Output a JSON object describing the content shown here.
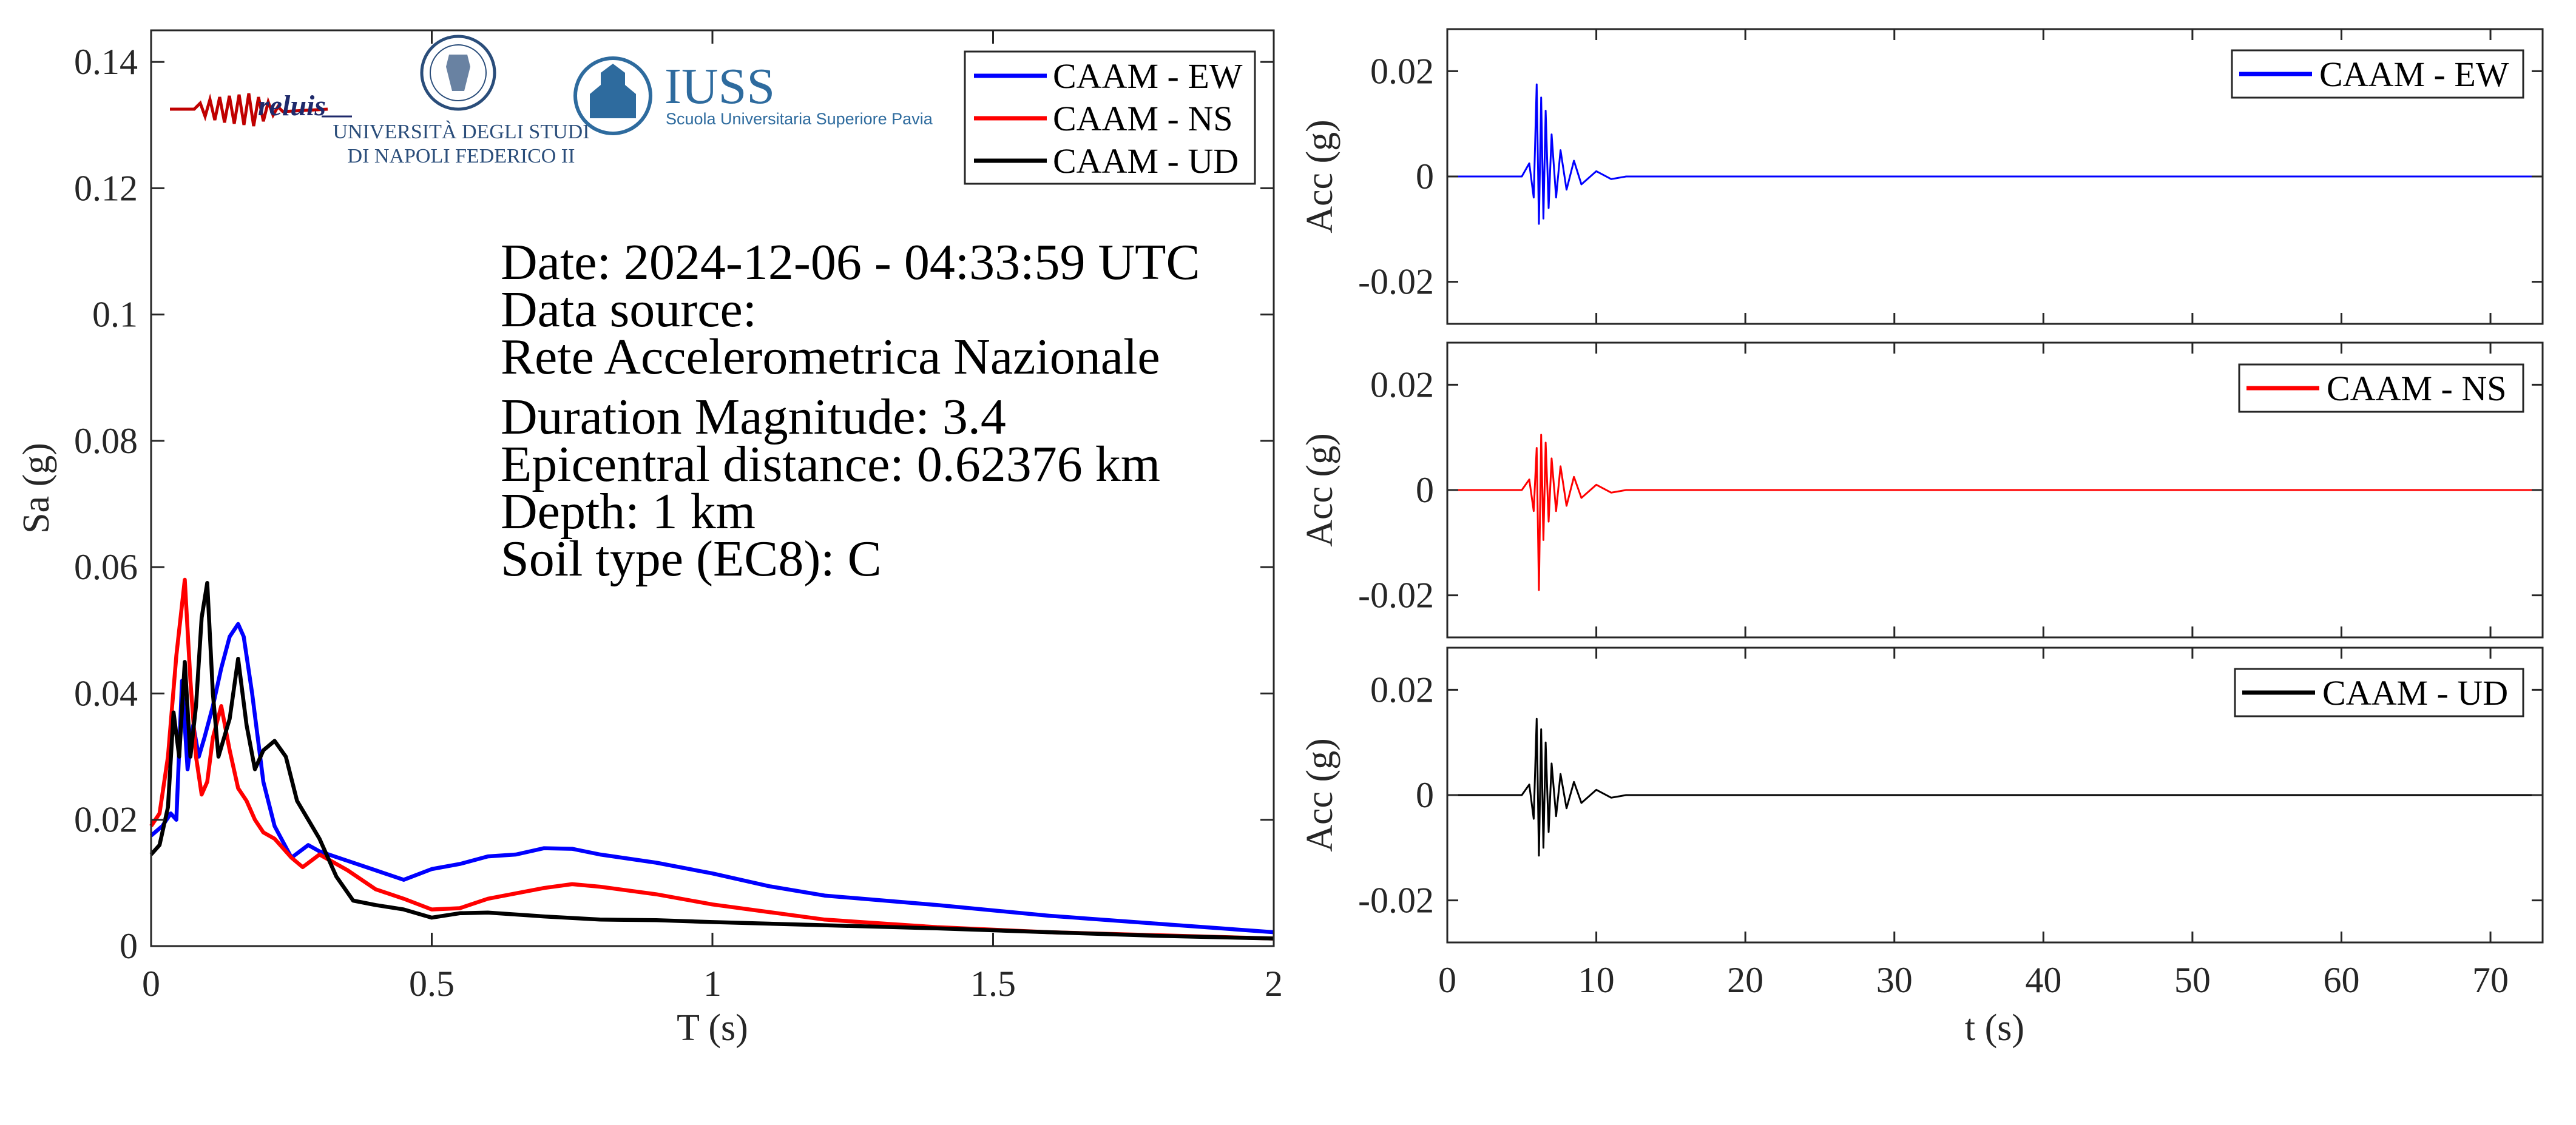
{
  "chart_data": [
    {
      "type": "line",
      "id": "response-spectrum",
      "xlabel": "T (s)",
      "ylabel": "Sa (g)",
      "xlim": [
        0,
        2
      ],
      "ylim": [
        0,
        0.145
      ],
      "xticks": [
        0,
        0.5,
        1,
        1.5,
        2
      ],
      "xtick_labels": [
        "0",
        "0.5",
        "1",
        "1.5",
        "2"
      ],
      "yticks": [
        0,
        0.02,
        0.04,
        0.06,
        0.08,
        0.1,
        0.12,
        0.14
      ],
      "ytick_labels": [
        "0",
        "0.02",
        "0.04",
        "0.06",
        "0.08",
        "0.1",
        "0.12",
        "0.14"
      ],
      "grid": false,
      "legend_position": "top-right",
      "series": [
        {
          "name": "CAAM - EW",
          "color": "#0000ff",
          "x": [
            0,
            0.02,
            0.035,
            0.045,
            0.055,
            0.065,
            0.075,
            0.085,
            0.095,
            0.11,
            0.125,
            0.14,
            0.155,
            0.165,
            0.18,
            0.2,
            0.22,
            0.25,
            0.28,
            0.3,
            0.35,
            0.4,
            0.45,
            0.5,
            0.55,
            0.6,
            0.65,
            0.7,
            0.75,
            0.8,
            0.9,
            1.0,
            1.1,
            1.2,
            1.4,
            1.6,
            1.8,
            2.0
          ],
          "y": [
            0.0175,
            0.019,
            0.021,
            0.02,
            0.042,
            0.028,
            0.035,
            0.03,
            0.033,
            0.038,
            0.044,
            0.049,
            0.051,
            0.049,
            0.04,
            0.026,
            0.019,
            0.014,
            0.016,
            0.015,
            0.0135,
            0.012,
            0.0105,
            0.0122,
            0.013,
            0.0142,
            0.0145,
            0.0155,
            0.0154,
            0.0145,
            0.0132,
            0.0115,
            0.0095,
            0.008,
            0.0065,
            0.0048,
            0.0035,
            0.0022
          ]
        },
        {
          "name": "CAAM - NS",
          "color": "#ff0000",
          "x": [
            0,
            0.015,
            0.03,
            0.045,
            0.06,
            0.07,
            0.08,
            0.09,
            0.1,
            0.11,
            0.125,
            0.14,
            0.155,
            0.17,
            0.185,
            0.2,
            0.22,
            0.25,
            0.27,
            0.3,
            0.35,
            0.4,
            0.45,
            0.5,
            0.55,
            0.6,
            0.7,
            0.75,
            0.8,
            0.9,
            1.0,
            1.2,
            1.4,
            1.6,
            2.0
          ],
          "y": [
            0.019,
            0.021,
            0.03,
            0.046,
            0.058,
            0.042,
            0.03,
            0.024,
            0.026,
            0.033,
            0.038,
            0.031,
            0.025,
            0.023,
            0.02,
            0.018,
            0.017,
            0.014,
            0.0125,
            0.0145,
            0.012,
            0.009,
            0.0075,
            0.0058,
            0.006,
            0.0075,
            0.0092,
            0.0098,
            0.0094,
            0.0082,
            0.0066,
            0.0042,
            0.003,
            0.0022,
            0.0012
          ]
        },
        {
          "name": "CAAM - UD",
          "color": "#000000",
          "x": [
            0,
            0.015,
            0.03,
            0.04,
            0.05,
            0.06,
            0.07,
            0.08,
            0.09,
            0.1,
            0.11,
            0.12,
            0.14,
            0.155,
            0.17,
            0.185,
            0.2,
            0.22,
            0.24,
            0.26,
            0.28,
            0.3,
            0.33,
            0.36,
            0.4,
            0.45,
            0.5,
            0.55,
            0.6,
            0.7,
            0.8,
            0.9,
            1.0,
            1.2,
            1.4,
            1.6,
            1.8,
            2.0
          ],
          "y": [
            0.0145,
            0.016,
            0.022,
            0.037,
            0.03,
            0.045,
            0.03,
            0.038,
            0.052,
            0.0575,
            0.04,
            0.03,
            0.036,
            0.0455,
            0.035,
            0.028,
            0.031,
            0.0325,
            0.03,
            0.023,
            0.02,
            0.017,
            0.011,
            0.0072,
            0.0065,
            0.0058,
            0.0045,
            0.0052,
            0.0053,
            0.0047,
            0.0042,
            0.0041,
            0.0038,
            0.0033,
            0.0028,
            0.0022,
            0.0016,
            0.0012
          ]
        }
      ]
    },
    {
      "type": "line",
      "id": "accelerogram-ew",
      "xlabel": "",
      "ylabel": "Acc (g)",
      "xlim": [
        0,
        73.5
      ],
      "ylim": [
        -0.028,
        0.028
      ],
      "yticks": [
        -0.02,
        0,
        0.02
      ],
      "ytick_labels": [
        "-0.02",
        "0",
        "0.02"
      ],
      "grid": false,
      "legend_position": "top-right",
      "series": [
        {
          "name": "CAAM - EW",
          "color": "#0000ff",
          "x": [
            0,
            5.0,
            5.5,
            5.8,
            6.0,
            6.15,
            6.3,
            6.45,
            6.6,
            6.8,
            7.0,
            7.3,
            7.6,
            8.0,
            8.5,
            9.0,
            10.0,
            11.0,
            12.0,
            73.5
          ],
          "y": [
            0,
            0,
            0.0025,
            -0.004,
            0.0175,
            -0.009,
            0.015,
            -0.008,
            0.0125,
            -0.006,
            0.008,
            -0.004,
            0.005,
            -0.0025,
            0.003,
            -0.0015,
            0.001,
            -0.0005,
            0,
            0
          ]
        }
      ]
    },
    {
      "type": "line",
      "id": "accelerogram-ns",
      "xlabel": "",
      "ylabel": "Acc (g)",
      "xlim": [
        0,
        73.5
      ],
      "ylim": [
        -0.028,
        0.028
      ],
      "yticks": [
        -0.02,
        0,
        0.02
      ],
      "ytick_labels": [
        "-0.02",
        "0",
        "0.02"
      ],
      "grid": false,
      "legend_position": "top-right",
      "series": [
        {
          "name": "CAAM - NS",
          "color": "#ff0000",
          "x": [
            0,
            5.0,
            5.5,
            5.8,
            6.0,
            6.15,
            6.3,
            6.45,
            6.6,
            6.8,
            7.0,
            7.3,
            7.6,
            8.0,
            8.5,
            9.0,
            10.0,
            11.0,
            12.0,
            73.5
          ],
          "y": [
            0,
            0,
            0.002,
            -0.004,
            0.008,
            -0.019,
            0.0105,
            -0.0095,
            0.009,
            -0.006,
            0.006,
            -0.004,
            0.0045,
            -0.003,
            0.0025,
            -0.0015,
            0.001,
            -0.0005,
            0,
            0
          ]
        }
      ]
    },
    {
      "type": "line",
      "id": "accelerogram-ud",
      "xlabel": "t (s)",
      "ylabel": "Acc (g)",
      "xlim": [
        0,
        73.5
      ],
      "ylim": [
        -0.028,
        0.028
      ],
      "xticks": [
        0,
        10,
        20,
        30,
        40,
        50,
        60,
        70
      ],
      "xtick_labels": [
        "0",
        "10",
        "20",
        "30",
        "40",
        "50",
        "60",
        "70"
      ],
      "yticks": [
        -0.02,
        0,
        0.02
      ],
      "ytick_labels": [
        "-0.02",
        "0",
        "0.02"
      ],
      "grid": false,
      "legend_position": "top-right",
      "series": [
        {
          "name": "CAAM - UD",
          "color": "#000000",
          "x": [
            0,
            5.0,
            5.5,
            5.8,
            6.0,
            6.15,
            6.3,
            6.45,
            6.6,
            6.8,
            7.0,
            7.3,
            7.6,
            8.0,
            8.5,
            9.0,
            10.0,
            11.0,
            12.0,
            73.5
          ],
          "y": [
            0,
            0,
            0.002,
            -0.0045,
            0.0145,
            -0.0115,
            0.0125,
            -0.01,
            0.01,
            -0.007,
            0.006,
            -0.004,
            0.004,
            -0.0025,
            0.0025,
            -0.0015,
            0.001,
            -0.0005,
            0,
            0
          ]
        }
      ]
    }
  ],
  "info": {
    "lines": [
      "Date: 2024-12-06 - 04:33:59 UTC",
      "Data source:",
      "Rete Accelerometrica Nazionale",
      "Duration Magnitude: 3.4",
      "Epicentral distance: 0.62376 km",
      "Depth: 1 km",
      "Soil type (EC8): C"
    ]
  },
  "logos": {
    "reluis": "reluis",
    "unina_line1": "UNIVERSITÀ DEGLI STUDI",
    "unina_line2": "DI NAPOLI FEDERICO II",
    "iuss_title": "IUSS",
    "iuss_subtitle": "Scuola Universitaria Superiore Pavia"
  },
  "colors": {
    "ew": "#0000ff",
    "ns": "#ff0000",
    "ud": "#000000",
    "reluis": "#c00000",
    "reluis_text": "#1f2a6b",
    "iuss": "#2e6b9e",
    "unina": "#2a4d7a",
    "axis": "#262626"
  },
  "icons": [
    "reluis-seismogram-logo",
    "unina-seal-logo",
    "iuss-building-logo"
  ]
}
